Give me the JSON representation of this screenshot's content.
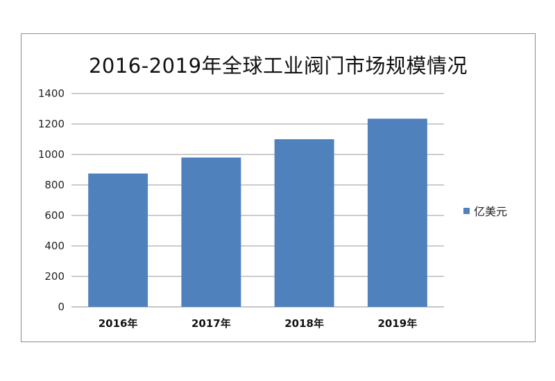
{
  "chart_data": {
    "type": "bar",
    "title": "2016-2019年全球工业阀门市场规模情况",
    "categories": [
      "2016年",
      "2017年",
      "2018年",
      "2019年"
    ],
    "series": [
      {
        "name": "亿美元",
        "values": [
          875,
          980,
          1100,
          1235
        ],
        "color": "#4f81bd"
      }
    ],
    "ylim": [
      0,
      1400
    ],
    "yticks": [
      0,
      200,
      400,
      600,
      800,
      1000,
      1200,
      1400
    ],
    "grid": true,
    "legend": "right"
  }
}
